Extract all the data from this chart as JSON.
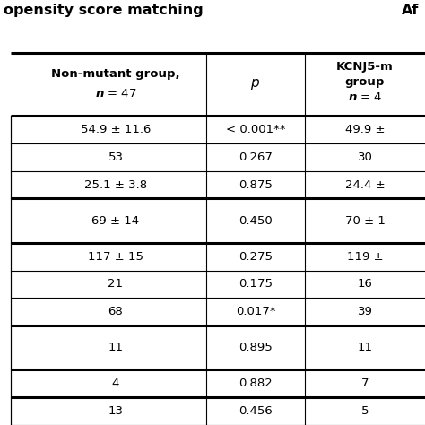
{
  "title_left": "opensity score matching",
  "title_right": "Af",
  "col1_header_line1": "Non-mutant group,",
  "col1_header_line2": "n = 47",
  "col2_header": "p",
  "col3_header_line1": "KCNJ5-m",
  "col3_header_line2": "group",
  "col3_header_line3": "n = 4",
  "rows": [
    [
      "54.9 ± 11.6",
      "< 0.001**",
      "49.9 ±"
    ],
    [
      "53",
      "0.267",
      "30"
    ],
    [
      "25.1 ± 3.8",
      "0.875",
      "24.4 ±"
    ],
    [
      "69 ± 14",
      "0.450",
      "70 ± 1"
    ],
    [
      "117 ± 15",
      "0.275",
      "119 ±"
    ],
    [
      "21",
      "0.175",
      "16"
    ],
    [
      "68",
      "0.017*",
      "39"
    ],
    [
      "11",
      "0.895",
      "11"
    ],
    [
      "4",
      "0.882",
      "7"
    ],
    [
      "13",
      "0.456",
      "5"
    ]
  ],
  "thick_after_rows": [
    2,
    3,
    6,
    7,
    8
  ],
  "tall_rows": [
    3,
    7
  ],
  "background_color": "#ffffff",
  "text_color": "#000000"
}
